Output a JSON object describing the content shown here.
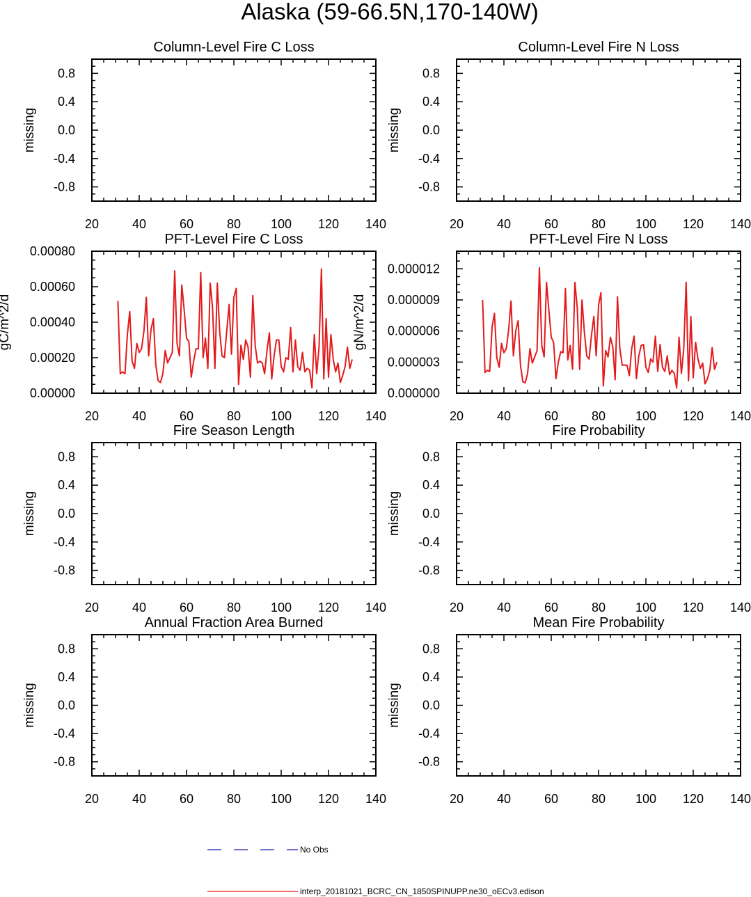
{
  "figure": {
    "title": "Alaska (59-66.5N,170-140W)",
    "legend": [
      {
        "label": "No Obs",
        "color": "#1a1aa8",
        "style": "dashed"
      },
      {
        "label": "interp_20181021_BCRC_CN_1850SPINUPP.ne30_oECv3.edison",
        "color": "#e31a1c",
        "style": "solid"
      }
    ]
  },
  "chart_data": [
    {
      "type": "line",
      "title": "Column-Level Fire C Loss",
      "ylabel": "missing",
      "xlim": [
        20,
        140
      ],
      "ylim": [
        -1,
        1
      ],
      "x_ticks": [
        "20",
        "40",
        "60",
        "80",
        "100",
        "120",
        "140"
      ],
      "y_ticks": [
        {
          "v": 0.8,
          "label": "0.8"
        },
        {
          "v": 0.4,
          "label": "0.4"
        },
        {
          "v": 0.0,
          "label": "0.0"
        },
        {
          "v": -0.4,
          "label": "-0.4"
        },
        {
          "v": -0.8,
          "label": "-0.8"
        }
      ],
      "series": []
    },
    {
      "type": "line",
      "title": "Column-Level Fire N Loss",
      "ylabel": "missing",
      "xlim": [
        20,
        140
      ],
      "ylim": [
        -1,
        1
      ],
      "x_ticks": [
        "20",
        "40",
        "60",
        "80",
        "100",
        "120",
        "140"
      ],
      "y_ticks": [
        {
          "v": 0.8,
          "label": "0.8"
        },
        {
          "v": 0.4,
          "label": "0.4"
        },
        {
          "v": 0.0,
          "label": "0.0"
        },
        {
          "v": -0.4,
          "label": "-0.4"
        },
        {
          "v": -0.8,
          "label": "-0.8"
        }
      ],
      "series": []
    },
    {
      "type": "line",
      "title": "PFT-Level Fire C Loss",
      "ylabel": "gC/m^2/d",
      "xlim": [
        20,
        140
      ],
      "ylim": [
        0,
        0.0008
      ],
      "x_ticks": [
        "20",
        "40",
        "60",
        "80",
        "100",
        "120",
        "140"
      ],
      "y_ticks": [
        {
          "v": 0.0008,
          "label": "0.00080"
        },
        {
          "v": 0.0006,
          "label": "0.00060"
        },
        {
          "v": 0.0004,
          "label": "0.00040"
        },
        {
          "v": 0.0002,
          "label": "0.00020"
        },
        {
          "v": 0.0,
          "label": "0.00000"
        }
      ],
      "series": [
        {
          "color": "#e31a1c",
          "x": [
            31,
            32,
            33,
            34,
            35,
            36,
            37,
            38,
            39,
            40,
            41,
            42,
            43,
            44,
            45,
            46,
            47,
            48,
            49,
            50,
            51,
            52,
            53,
            54,
            55,
            56,
            57,
            58,
            59,
            60,
            61,
            62,
            63,
            64,
            65,
            66,
            67,
            68,
            69,
            70,
            71,
            72,
            73,
            74,
            75,
            76,
            77,
            78,
            79,
            80,
            81,
            82,
            83,
            84,
            85,
            86,
            87,
            88,
            89,
            90,
            91,
            92,
            93,
            94,
            95,
            96,
            97,
            98,
            99,
            100,
            101,
            102,
            103,
            104,
            105,
            106,
            107,
            108,
            109,
            110,
            111,
            112,
            113,
            114,
            115,
            116,
            117,
            118,
            119,
            120,
            121,
            122,
            123,
            124,
            125,
            126,
            127,
            128,
            129,
            130
          ],
          "y": [
            0.00052,
            0.00011,
            0.00012,
            0.00011,
            0.00033,
            0.00046,
            0.00018,
            0.00014,
            0.00028,
            0.00023,
            0.00025,
            0.00035,
            0.00054,
            0.00021,
            0.00036,
            0.00042,
            0.00016,
            7e-05,
            6e-05,
            0.00011,
            0.00024,
            0.00017,
            0.0002,
            0.00023,
            0.00069,
            0.00028,
            0.00021,
            0.00061,
            0.00047,
            0.00031,
            0.00029,
            9e-05,
            0.00018,
            0.00025,
            0.00025,
            0.00068,
            0.0002,
            0.00031,
            0.00014,
            0.00062,
            0.00048,
            0.00014,
            0.00062,
            0.00035,
            0.00021,
            0.0002,
            0.00035,
            0.0005,
            0.00022,
            0.00054,
            0.00059,
            5e-05,
            0.00027,
            0.00019,
            0.0003,
            0.00026,
            9e-05,
            0.00055,
            0.00027,
            0.00017,
            0.00018,
            0.00017,
            0.00011,
            0.00024,
            0.00034,
            8e-05,
            0.00021,
            0.0003,
            0.0003,
            0.00015,
            0.00012,
            0.0002,
            0.00019,
            0.00037,
            0.00012,
            0.0003,
            0.00015,
            0.00013,
            0.00023,
            0.00012,
            0.00014,
            0.00013,
            3e-05,
            0.00033,
            0.00011,
            0.00026,
            0.0007,
            8e-05,
            0.00042,
            9e-05,
            0.00033,
            0.00019,
            0.00012,
            0.00017,
            6e-05,
            0.0001,
            0.00015,
            0.00026,
            0.00014,
            0.00019
          ]
        }
      ]
    },
    {
      "type": "line",
      "title": "PFT-Level Fire N Loss",
      "ylabel": "gN/m^2/d",
      "xlim": [
        20,
        140
      ],
      "ylim": [
        0,
        1.37e-05
      ],
      "x_ticks": [
        "20",
        "40",
        "60",
        "80",
        "100",
        "120",
        "140"
      ],
      "y_ticks": [
        {
          "v": 1.2e-05,
          "label": "0.000012"
        },
        {
          "v": 9e-06,
          "label": "0.000009"
        },
        {
          "v": 6e-06,
          "label": "0.000006"
        },
        {
          "v": 3e-06,
          "label": "0.000003"
        },
        {
          "v": 0.0,
          "label": "0.000000"
        }
      ],
      "series": [
        {
          "color": "#e31a1c",
          "x": [
            31,
            32,
            33,
            34,
            35,
            36,
            37,
            38,
            39,
            40,
            41,
            42,
            43,
            44,
            45,
            46,
            47,
            48,
            49,
            50,
            51,
            52,
            53,
            54,
            55,
            56,
            57,
            58,
            59,
            60,
            61,
            62,
            63,
            64,
            65,
            66,
            67,
            68,
            69,
            70,
            71,
            72,
            73,
            74,
            75,
            76,
            77,
            78,
            79,
            80,
            81,
            82,
            83,
            84,
            85,
            86,
            87,
            88,
            89,
            90,
            91,
            92,
            93,
            94,
            95,
            96,
            97,
            98,
            99,
            100,
            101,
            102,
            103,
            104,
            105,
            106,
            107,
            108,
            109,
            110,
            111,
            112,
            113,
            114,
            115,
            116,
            117,
            118,
            119,
            120,
            121,
            122,
            123,
            124,
            125,
            126,
            127,
            128,
            129,
            130
          ],
          "y": [
            9e-06,
            2e-06,
            2.2e-06,
            2.1e-06,
            6.4e-06,
            7.7e-06,
            3.4e-06,
            2.5e-06,
            4.8e-06,
            3.9e-06,
            4.3e-06,
            6.1e-06,
            8.9e-06,
            3.6e-06,
            6e-06,
            7e-06,
            2.7e-06,
            1.1e-06,
            1e-06,
            1.9e-06,
            4.3e-06,
            2.9e-06,
            3.5e-06,
            4.1e-06,
            1.21e-05,
            4.6e-06,
            3.5e-06,
            1.07e-05,
            8e-06,
            5.4e-06,
            4.9e-06,
            1.4e-06,
            3e-06,
            4e-06,
            3.9e-06,
            1.01e-05,
            3.2e-06,
            4.6e-06,
            2.3e-06,
            1.07e-05,
            8.2e-06,
            2.3e-06,
            9e-06,
            5.9e-06,
            3.6e-06,
            3.3e-06,
            5.6e-06,
            7.4e-06,
            3.6e-06,
            8.5e-06,
            9.7e-06,
            7e-07,
            4.1e-06,
            3.5e-06,
            5.4e-06,
            4.5e-06,
            1.3e-06,
            9.3e-06,
            4.3e-06,
            2.7e-06,
            2.7e-06,
            2.7e-06,
            1.7e-06,
            4.3e-06,
            5.5e-06,
            1.4e-06,
            3.6e-06,
            4.6e-06,
            4.7e-06,
            2.5e-06,
            2e-06,
            3.3e-06,
            3e-06,
            5.5e-06,
            2.1e-06,
            4.7e-06,
            2.5e-06,
            2.1e-06,
            3.6e-06,
            1.8e-06,
            2.2e-06,
            1.9e-06,
            5e-07,
            5.4e-06,
            1.9e-06,
            4.3e-06,
            1.07e-05,
            1.2e-06,
            7.4e-06,
            1.5e-06,
            4.9e-06,
            3.3e-06,
            2.4e-06,
            2.9e-06,
            9e-07,
            1.4e-06,
            2.2e-06,
            4.4e-06,
            2.3e-06,
            3e-06
          ]
        }
      ]
    },
    {
      "type": "line",
      "title": "Fire Season Length",
      "ylabel": "missing",
      "xlim": [
        20,
        140
      ],
      "ylim": [
        -1,
        1
      ],
      "x_ticks": [
        "20",
        "40",
        "60",
        "80",
        "100",
        "120",
        "140"
      ],
      "y_ticks": [
        {
          "v": 0.8,
          "label": "0.8"
        },
        {
          "v": 0.4,
          "label": "0.4"
        },
        {
          "v": 0.0,
          "label": "0.0"
        },
        {
          "v": -0.4,
          "label": "-0.4"
        },
        {
          "v": -0.8,
          "label": "-0.8"
        }
      ],
      "series": []
    },
    {
      "type": "line",
      "title": "Fire Probability",
      "ylabel": "missing",
      "xlim": [
        20,
        140
      ],
      "ylim": [
        -1,
        1
      ],
      "x_ticks": [
        "20",
        "40",
        "60",
        "80",
        "100",
        "120",
        "140"
      ],
      "y_ticks": [
        {
          "v": 0.8,
          "label": "0.8"
        },
        {
          "v": 0.4,
          "label": "0.4"
        },
        {
          "v": 0.0,
          "label": "0.0"
        },
        {
          "v": -0.4,
          "label": "-0.4"
        },
        {
          "v": -0.8,
          "label": "-0.8"
        }
      ],
      "series": []
    },
    {
      "type": "line",
      "title": "Annual Fraction Area Burned",
      "ylabel": "missing",
      "xlim": [
        20,
        140
      ],
      "ylim": [
        -1,
        1
      ],
      "x_ticks": [
        "20",
        "40",
        "60",
        "80",
        "100",
        "120",
        "140"
      ],
      "y_ticks": [
        {
          "v": 0.8,
          "label": "0.8"
        },
        {
          "v": 0.4,
          "label": "0.4"
        },
        {
          "v": 0.0,
          "label": "0.0"
        },
        {
          "v": -0.4,
          "label": "-0.4"
        },
        {
          "v": -0.8,
          "label": "-0.8"
        }
      ],
      "series": []
    },
    {
      "type": "line",
      "title": "Mean Fire Probability",
      "ylabel": "missing",
      "xlim": [
        20,
        140
      ],
      "ylim": [
        -1,
        1
      ],
      "x_ticks": [
        "20",
        "40",
        "60",
        "80",
        "100",
        "120",
        "140"
      ],
      "y_ticks": [
        {
          "v": 0.8,
          "label": "0.8"
        },
        {
          "v": 0.4,
          "label": "0.4"
        },
        {
          "v": 0.0,
          "label": "0.0"
        },
        {
          "v": -0.4,
          "label": "-0.4"
        },
        {
          "v": -0.8,
          "label": "-0.8"
        }
      ],
      "series": []
    }
  ]
}
